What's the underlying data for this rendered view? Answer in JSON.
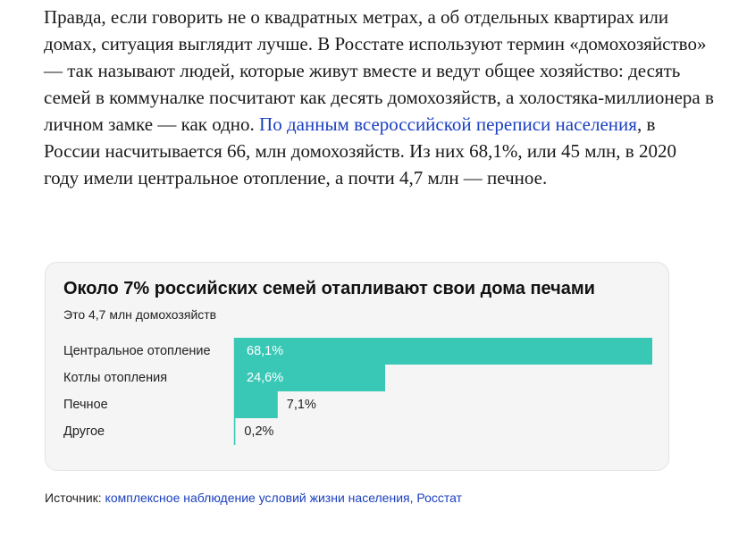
{
  "article": {
    "paragraph_text": "Правда, если говорить не о квадратных метрах, а об отдельных квартирах или домах, ситуация выглядит лучше. В Росстате используют термин «домохозяйство» — так называют людей, которые живут вместе и ведут общее хозяйство: десять семей в коммуналке посчитают как десять домохозяйств, а холостяка-миллионера в личном замке — как одно.",
    "link_text": "По данным всероссийской переписи населения",
    "continuation_text": ", в России насчитывается 66, млн домохозяйств. Из них 68,1%, или 45 млн, в 2020 году имели центральное отопление, а почти 4,7 млн — печное."
  },
  "chart_data": {
    "type": "bar",
    "orientation": "horizontal",
    "title": "Около 7% российских семей отапливают свои дома печами",
    "subtitle": "Это 4,7 млн домохозяйств",
    "categories": [
      "Центральное отопление",
      "Котлы отопления",
      "Печное",
      "Другое"
    ],
    "values": [
      68.1,
      24.6,
      7.1,
      0.2
    ],
    "value_labels": [
      "68,1%",
      "24,6%",
      "7,1%",
      "0,2%"
    ],
    "xlim": [
      0,
      68.1
    ],
    "grid": false,
    "legend": "none",
    "bar_color": "#3ac8b6"
  },
  "source": {
    "label": "Источник:",
    "link_text": "комплексное наблюдение условий жизни населения, Росстат"
  },
  "colors": {
    "link": "#1a3fbf",
    "bar": "#3ac8b6",
    "card_background": "#f5f5f5"
  }
}
